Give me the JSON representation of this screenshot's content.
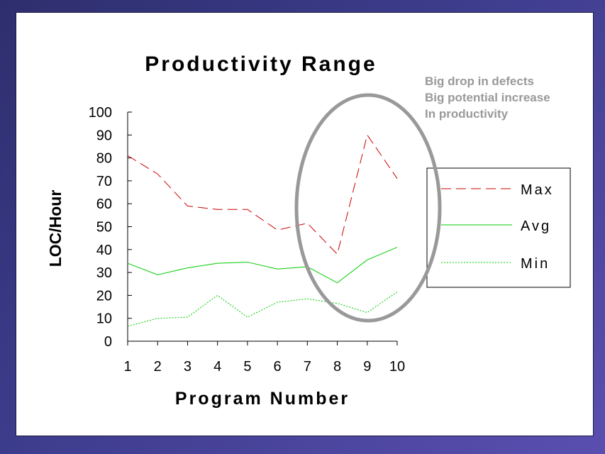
{
  "chart_data": {
    "type": "line",
    "title": "Productivity Range",
    "xlabel": "Program Number",
    "ylabel": "LOC/Hour",
    "x": [
      1,
      2,
      3,
      4,
      5,
      6,
      7,
      8,
      9,
      10
    ],
    "ylim": [
      0,
      100
    ],
    "yticks": [
      0,
      10,
      20,
      30,
      40,
      50,
      60,
      70,
      80,
      90,
      100
    ],
    "legend_position": "right",
    "grid": false,
    "series": [
      {
        "name": "Max",
        "values": [
          81,
          73,
          59,
          57.5,
          57.5,
          48.5,
          51.5,
          38,
          90,
          71
        ],
        "color": "#cc0000",
        "dash": "dashed"
      },
      {
        "name": "Avg",
        "values": [
          34,
          29,
          32,
          34,
          34.5,
          31.5,
          32.5,
          25.5,
          35.5,
          41
        ],
        "color": "#00cc00",
        "dash": "solid"
      },
      {
        "name": "Min",
        "values": [
          6.5,
          10,
          10.5,
          20,
          10.5,
          17,
          18.5,
          16.5,
          12.5,
          21.5
        ],
        "color": "#00cc00",
        "dash": "dotted"
      }
    ],
    "annotations": [
      "Big drop in defects",
      "Big potential increase",
      "In productivity"
    ]
  },
  "highlight_color": "#999999"
}
